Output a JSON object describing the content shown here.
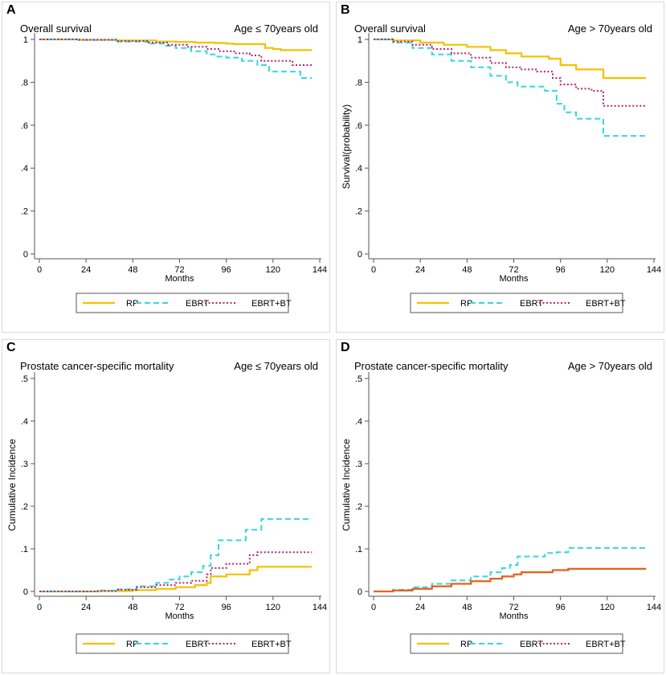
{
  "colors": {
    "RP": "#f5c000",
    "EBRT": "#36d6e0",
    "EBRT+BT": "#b3246e",
    "RP_D": "#e8601a"
  },
  "legend": [
    "RP",
    "EBRT",
    "EBRT+BT"
  ],
  "chart_data": [
    {
      "panel_label": "A",
      "type": "line",
      "title": "Overall survival",
      "subtitle": "Age ≤ 70years old",
      "xlabel": "Months",
      "ylabel": "",
      "xlim": [
        0,
        144
      ],
      "ylim": [
        0,
        1
      ],
      "xticks": [
        0,
        24,
        48,
        72,
        96,
        120,
        144
      ],
      "yticks": [
        0,
        0.2,
        0.4,
        0.6,
        0.8,
        1
      ],
      "yticklabels": [
        "0",
        ".2",
        ".4",
        ".6",
        ".8",
        "1"
      ],
      "series": [
        {
          "name": "RP",
          "x": [
            0,
            20,
            40,
            60,
            70,
            80,
            90,
            96,
            100,
            116,
            120,
            124,
            140
          ],
          "y": [
            1,
            0.998,
            0.995,
            0.99,
            0.988,
            0.985,
            0.983,
            0.98,
            0.978,
            0.96,
            0.955,
            0.95,
            0.95
          ]
        },
        {
          "name": "EBRT",
          "x": [
            0,
            20,
            40,
            56,
            64,
            70,
            78,
            86,
            90,
            96,
            104,
            112,
            118,
            124,
            130,
            134,
            140
          ],
          "y": [
            1,
            0.997,
            0.99,
            0.98,
            0.97,
            0.96,
            0.945,
            0.93,
            0.92,
            0.915,
            0.9,
            0.88,
            0.85,
            0.85,
            0.85,
            0.82,
            0.82
          ]
        },
        {
          "name": "EBRT+BT",
          "x": [
            0,
            20,
            40,
            56,
            66,
            76,
            86,
            92,
            100,
            108,
            114,
            120,
            130,
            140
          ],
          "y": [
            1,
            0.998,
            0.992,
            0.985,
            0.975,
            0.965,
            0.955,
            0.945,
            0.935,
            0.925,
            0.9,
            0.9,
            0.88,
            0.88
          ]
        }
      ]
    },
    {
      "panel_label": "B",
      "type": "line",
      "title": "Overall survival",
      "subtitle": "Age > 70years old",
      "xlabel": "Months",
      "ylabel": "Survival(probability)",
      "xlim": [
        0,
        144
      ],
      "ylim": [
        0,
        1
      ],
      "xticks": [
        0,
        24,
        48,
        72,
        96,
        120,
        144
      ],
      "yticks": [
        0,
        0.2,
        0.4,
        0.6,
        0.8,
        1
      ],
      "yticklabels": [
        "0",
        ".2",
        ".4",
        ".6",
        ".8",
        "1"
      ],
      "series": [
        {
          "name": "RP",
          "x": [
            0,
            10,
            24,
            36,
            48,
            60,
            68,
            76,
            84,
            90,
            96,
            104,
            110,
            118,
            124,
            132,
            140
          ],
          "y": [
            1,
            0.995,
            0.985,
            0.975,
            0.965,
            0.95,
            0.935,
            0.92,
            0.92,
            0.91,
            0.88,
            0.86,
            0.86,
            0.82,
            0.82,
            0.82,
            0.82
          ]
        },
        {
          "name": "EBRT",
          "x": [
            0,
            10,
            20,
            30,
            40,
            50,
            60,
            68,
            74,
            82,
            88,
            94,
            98,
            104,
            110,
            118,
            124,
            132,
            140
          ],
          "y": [
            1,
            0.985,
            0.96,
            0.93,
            0.9,
            0.87,
            0.83,
            0.8,
            0.78,
            0.78,
            0.76,
            0.7,
            0.66,
            0.63,
            0.63,
            0.55,
            0.55,
            0.55,
            0.545
          ]
        },
        {
          "name": "EBRT+BT",
          "x": [
            0,
            10,
            20,
            30,
            40,
            50,
            60,
            68,
            76,
            84,
            92,
            96,
            104,
            112,
            118,
            124,
            132,
            140
          ],
          "y": [
            1,
            0.99,
            0.975,
            0.955,
            0.935,
            0.915,
            0.89,
            0.87,
            0.86,
            0.85,
            0.82,
            0.79,
            0.77,
            0.76,
            0.69,
            0.69,
            0.69,
            0.69
          ]
        }
      ]
    },
    {
      "panel_label": "C",
      "type": "line",
      "title": "Prostate cancer-specific mortality",
      "subtitle": "Age ≤ 70years old",
      "xlabel": "Months",
      "ylabel": "Cumulative Incidence",
      "xlim": [
        0,
        144
      ],
      "ylim": [
        0,
        0.5
      ],
      "xticks": [
        0,
        24,
        48,
        72,
        96,
        120,
        144
      ],
      "yticks": [
        0,
        0.1,
        0.2,
        0.3,
        0.4,
        0.5
      ],
      "yticklabels": [
        "0",
        ".1",
        ".2",
        ".3",
        ".4",
        ".5"
      ],
      "series": [
        {
          "name": "RP",
          "x": [
            0,
            30,
            48,
            60,
            70,
            80,
            86,
            88,
            96,
            108,
            112,
            120,
            130,
            140
          ],
          "y": [
            0,
            0.001,
            0.003,
            0.006,
            0.01,
            0.015,
            0.02,
            0.035,
            0.04,
            0.05,
            0.058,
            0.058,
            0.058,
            0.058
          ]
        },
        {
          "name": "EBRT",
          "x": [
            0,
            30,
            40,
            50,
            60,
            66,
            72,
            78,
            84,
            88,
            92,
            100,
            106,
            110,
            114,
            120,
            130,
            140
          ],
          "y": [
            0,
            0.002,
            0.005,
            0.012,
            0.02,
            0.028,
            0.035,
            0.045,
            0.06,
            0.085,
            0.12,
            0.12,
            0.145,
            0.145,
            0.17,
            0.17,
            0.17,
            0.17
          ]
        },
        {
          "name": "EBRT+BT",
          "x": [
            0,
            30,
            40,
            50,
            60,
            70,
            78,
            86,
            88,
            96,
            102,
            108,
            112,
            120,
            130,
            140
          ],
          "y": [
            0,
            0.001,
            0.004,
            0.01,
            0.015,
            0.02,
            0.025,
            0.04,
            0.055,
            0.065,
            0.065,
            0.085,
            0.092,
            0.092,
            0.092,
            0.092
          ]
        }
      ]
    },
    {
      "panel_label": "D",
      "type": "line",
      "title": "Prostate cancer-specific mortality",
      "subtitle": "Age > 70years old",
      "xlabel": "Months",
      "ylabel": "Cumulative Incidence",
      "xlim": [
        0,
        144
      ],
      "ylim": [
        0,
        0.5
      ],
      "xticks": [
        0,
        24,
        48,
        72,
        96,
        120,
        144
      ],
      "yticks": [
        0,
        0.1,
        0.2,
        0.3,
        0.4,
        0.5
      ],
      "yticklabels": [
        "0",
        ".1",
        ".2",
        ".3",
        ".4",
        ".5"
      ],
      "series": [
        {
          "name": "EBRT",
          "x": [
            0,
            10,
            20,
            30,
            40,
            50,
            60,
            66,
            70,
            74,
            80,
            88,
            94,
            100,
            110,
            120,
            130,
            140
          ],
          "y": [
            0,
            0.004,
            0.01,
            0.018,
            0.026,
            0.035,
            0.045,
            0.055,
            0.062,
            0.082,
            0.082,
            0.09,
            0.092,
            0.102,
            0.102,
            0.102,
            0.102,
            0.102
          ]
        },
        {
          "name": "EBRT+BT",
          "x": [
            0,
            10,
            20,
            30,
            40,
            50,
            60,
            66,
            72,
            76,
            84,
            92,
            100,
            110,
            120,
            130,
            140
          ],
          "y": [
            0,
            0.002,
            0.006,
            0.012,
            0.018,
            0.024,
            0.03,
            0.035,
            0.04,
            0.045,
            0.045,
            0.05,
            0.053,
            0.053,
            0.053,
            0.053,
            0.053
          ]
        },
        {
          "name": "RP_D",
          "x": [
            0,
            10,
            20,
            30,
            40,
            50,
            60,
            66,
            72,
            76,
            84,
            92,
            100,
            110,
            120,
            130,
            140
          ],
          "y": [
            0,
            0.002,
            0.006,
            0.012,
            0.018,
            0.024,
            0.03,
            0.035,
            0.04,
            0.045,
            0.045,
            0.05,
            0.053,
            0.053,
            0.053,
            0.053,
            0.053
          ]
        }
      ]
    }
  ]
}
